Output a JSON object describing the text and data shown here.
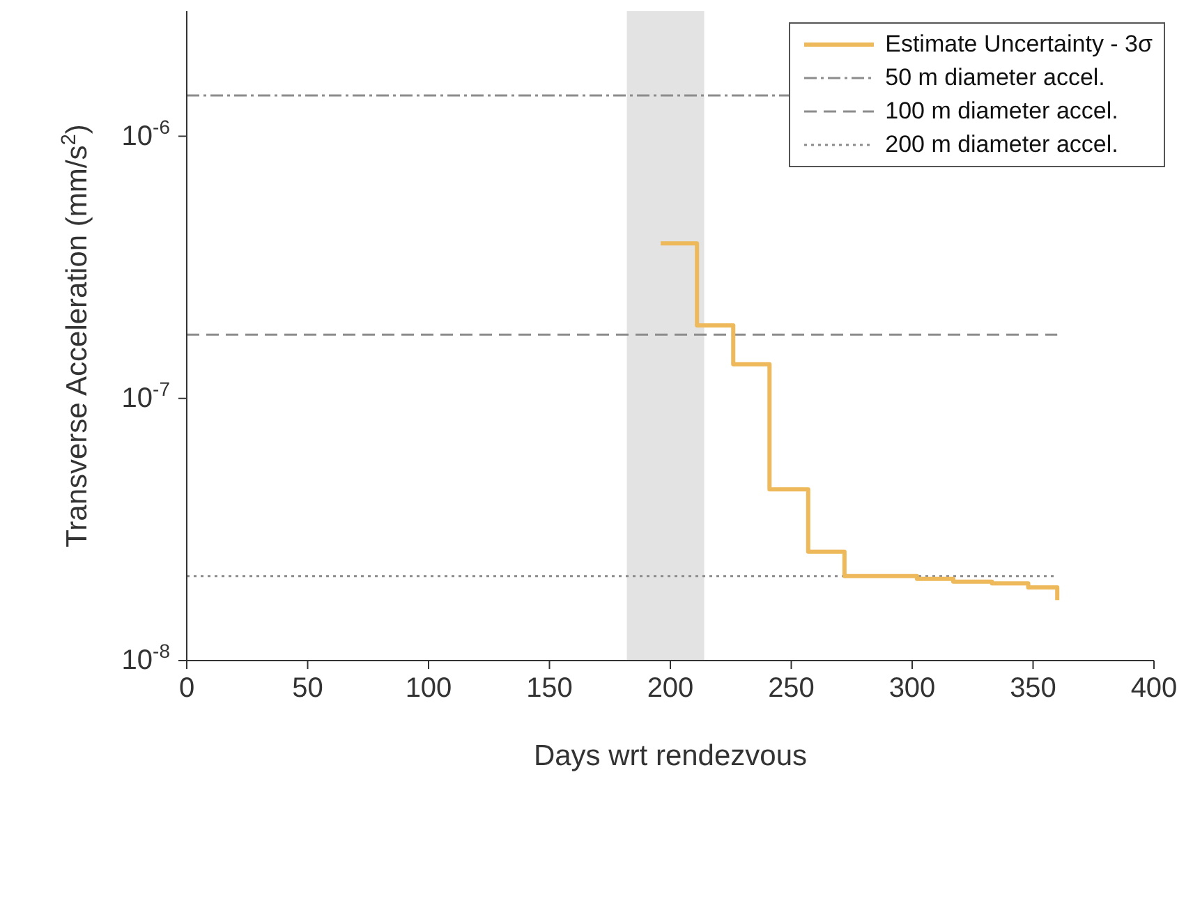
{
  "chart_data": {
    "type": "step",
    "xlabel": "Days wrt rendezvous",
    "ylabel": "Transverse Acceleration (mm/s$^{2}$)",
    "xlim": [
      0,
      400
    ],
    "xticks": [
      0,
      50,
      100,
      150,
      200,
      250,
      300,
      350,
      400
    ],
    "ylim": [
      1e-08,
      3e-06
    ],
    "yticks": [
      {
        "value": 1e-08,
        "label": "10$^{-8}$"
      },
      {
        "value": 1e-07,
        "label": "10$^{-7}$"
      },
      {
        "value": 1e-06,
        "label": "10$^{-6}$"
      }
    ],
    "log": "y",
    "grid": false,
    "legend": "top right",
    "marker": "none",
    "line_style": "solid",
    "series": [
      {
        "name": "Estimate Uncertainty - 3σ",
        "color": "#edb95a",
        "x": [
          196,
          211,
          226,
          241,
          257,
          272,
          302,
          317,
          333,
          348,
          358,
          360
        ],
        "values": [
          3.9e-07,
          1.9e-07,
          1.35e-07,
          4.5e-08,
          2.6e-08,
          2.1e-08,
          2.05e-08,
          2e-08,
          1.97e-08,
          1.9e-08,
          1.9e-08,
          1.7e-08
        ]
      }
    ],
    "ref_lines": [
      {
        "axis": "y",
        "value": 1.43e-06,
        "label": "50 m diameter accel.",
        "color": "#8c8c8c",
        "line_style": "dashdot"
      },
      {
        "axis": "y",
        "value": 1.75e-07,
        "label": "100 m diameter accel.",
        "color": "#8c8c8c",
        "line_style": "dashed"
      },
      {
        "axis": "y",
        "value": 2.1e-08,
        "label": "200 m diameter accel.",
        "color": "#8c8c8c",
        "line_style": "dotted"
      }
    ],
    "bands": [
      {
        "axis": "x",
        "from": 182,
        "to": 214,
        "color": "#e3e3e3"
      }
    ]
  }
}
